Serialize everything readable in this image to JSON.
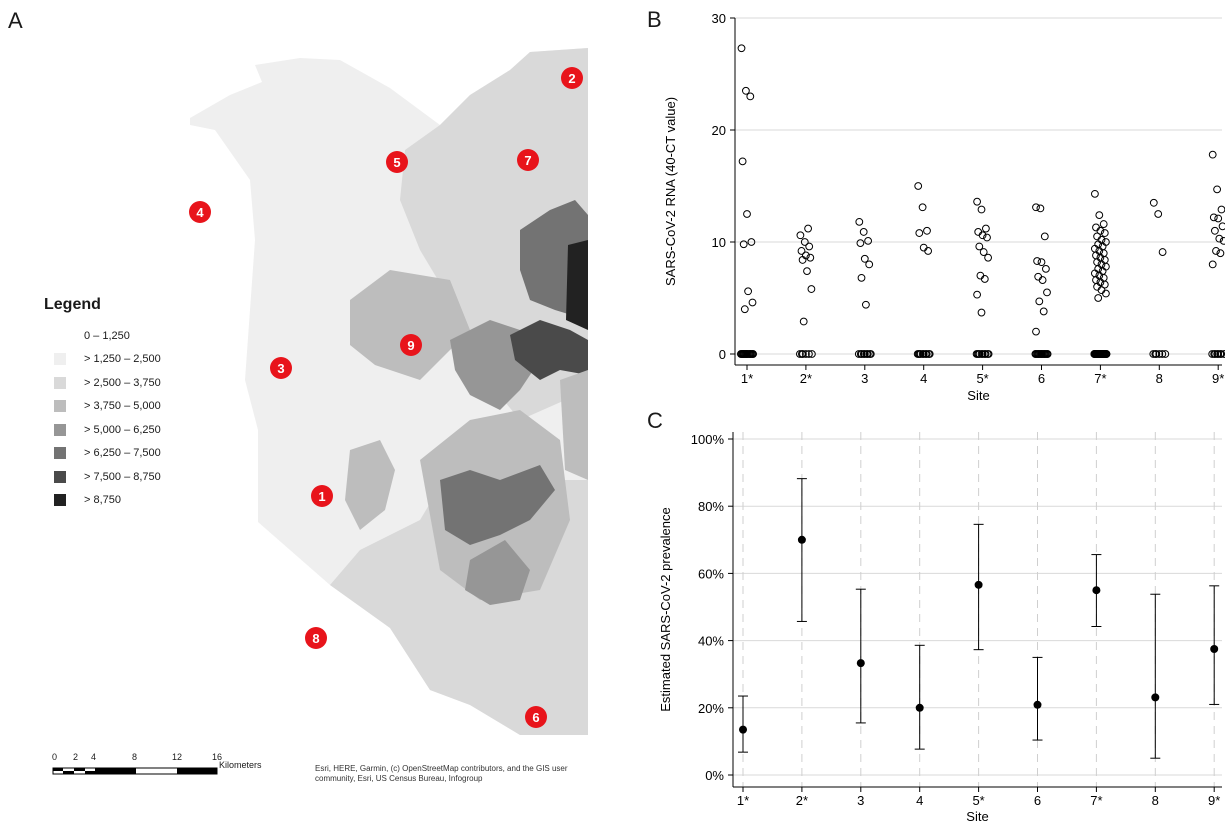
{
  "panels": {
    "a": "A",
    "b": "B",
    "c": "C"
  },
  "map": {
    "legend_title": "Legend",
    "legend": [
      {
        "label": "0 – 1,250",
        "color": "#ffffff"
      },
      {
        "label": "> 1,250 – 2,500",
        "color": "#efefef"
      },
      {
        "label": "> 2,500 – 3,750",
        "color": "#d9d9d9"
      },
      {
        "label": "> 3,750 – 5,000",
        "color": "#bdbdbd"
      },
      {
        "label": "> 5,000 – 6,250",
        "color": "#969696"
      },
      {
        "label": "> 6,250 – 7,500",
        "color": "#737373"
      },
      {
        "label": "> 7,500 – 8,750",
        "color": "#4a4a4a"
      },
      {
        "label": "> 8,750",
        "color": "#222222"
      }
    ],
    "sites": [
      "1",
      "2",
      "3",
      "4",
      "5",
      "6",
      "7",
      "8",
      "9"
    ],
    "marker_color": "#e8141b",
    "scale": {
      "ticks": [
        "0",
        "2",
        "4",
        "8",
        "12",
        "16"
      ],
      "unit": "Kilometers"
    },
    "attribution": "Esri, HERE, Garmin, (c) OpenStreetMap contributors, and the GIS user community, Esri, US Census Bureau, Infogroup"
  },
  "chart_data": [
    {
      "type": "scatter",
      "panel": "B",
      "xlabel": "Site",
      "ylabel": "SARS-CoV-2 RNA (40-CT value)",
      "categories": [
        "1*",
        "2*",
        "3",
        "4",
        "5*",
        "6",
        "7*",
        "8",
        "9*"
      ],
      "ylim": [
        0,
        30
      ],
      "yticks": [
        0,
        10,
        20,
        30
      ],
      "grid": true,
      "positive_values": [
        [
          27.3,
          23.5,
          23.0,
          17.2,
          12.5,
          10.0,
          9.8,
          5.6,
          4.6,
          4.0
        ],
        [
          10.6,
          10.0,
          9.6,
          9.2,
          8.8,
          8.6,
          8.4,
          7.4,
          5.8,
          2.9,
          11.2
        ],
        [
          11.8,
          10.9,
          10.1,
          9.9,
          8.5,
          8.0,
          6.8,
          4.4
        ],
        [
          15.0,
          13.1,
          11.0,
          10.8,
          9.5,
          9.2
        ],
        [
          13.6,
          12.9,
          11.2,
          10.9,
          10.6,
          10.4,
          9.6,
          9.1,
          8.6,
          7.0,
          6.7,
          5.3,
          3.7
        ],
        [
          13.1,
          13.0,
          10.5,
          8.3,
          8.2,
          7.6,
          6.9,
          6.6,
          5.5,
          4.7,
          3.8,
          2.0
        ],
        [
          14.3,
          12.4,
          11.6,
          11.3,
          11.0,
          10.8,
          10.5,
          10.2,
          10.0,
          9.8,
          9.6,
          9.4,
          9.2,
          9.0,
          8.8,
          8.6,
          8.4,
          8.2,
          8.0,
          7.8,
          7.6,
          7.4,
          7.2,
          7.0,
          6.8,
          6.6,
          6.4,
          6.2,
          6.0,
          5.7,
          5.4,
          5.0
        ],
        [
          13.5,
          12.5,
          9.1
        ],
        [
          17.8,
          14.7,
          12.9,
          12.2,
          12.1,
          11.4,
          11.0,
          10.3,
          10.1,
          9.2,
          9.0,
          8.0
        ]
      ],
      "zero_counts": [
        20,
        6,
        9,
        10,
        10,
        18,
        34,
        6,
        8
      ]
    },
    {
      "type": "errorbar",
      "panel": "C",
      "xlabel": "Site",
      "ylabel": "Estimated SARS-CoV-2 prevalence",
      "categories": [
        "1*",
        "2*",
        "3",
        "4",
        "5*",
        "6",
        "7*",
        "8",
        "9*"
      ],
      "ylim": [
        0,
        100
      ],
      "yticks": [
        "0%",
        "20%",
        "40%",
        "60%",
        "80%",
        "100%"
      ],
      "estimate": [
        13.5,
        70.0,
        33.3,
        20.0,
        56.6,
        20.9,
        55.0,
        23.1,
        37.5
      ],
      "lower": [
        6.8,
        45.7,
        15.5,
        7.7,
        37.3,
        10.4,
        44.2,
        5.0,
        21.0
      ],
      "upper": [
        23.5,
        88.2,
        55.3,
        38.6,
        74.6,
        35.0,
        65.6,
        53.8,
        56.3
      ],
      "grid": true
    }
  ]
}
